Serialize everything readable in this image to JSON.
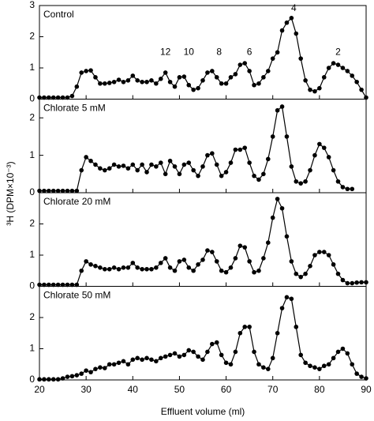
{
  "y_label": "³H (DPM×10⁻³)",
  "x_label": "Effluent volume (ml)",
  "chart_data": [
    {
      "type": "line",
      "title": "Control",
      "xlim": [
        20,
        90
      ],
      "ylim": [
        0,
        3
      ],
      "yticks": [
        0,
        1,
        2,
        3
      ],
      "x": [
        20,
        21,
        22,
        23,
        24,
        25,
        26,
        27,
        28,
        29,
        30,
        31,
        32,
        33,
        34,
        35,
        36,
        37,
        38,
        39,
        40,
        41,
        42,
        43,
        44,
        45,
        46,
        47,
        48,
        49,
        50,
        51,
        52,
        53,
        54,
        55,
        56,
        57,
        58,
        59,
        60,
        61,
        62,
        63,
        64,
        65,
        66,
        67,
        68,
        69,
        70,
        71,
        72,
        73,
        74,
        75,
        76,
        77,
        78,
        79,
        80,
        81,
        82,
        83,
        84,
        85,
        86,
        87,
        88,
        89,
        90
      ],
      "series": [
        {
          "name": "Control",
          "color": "#000000",
          "values": [
            0.05,
            0.05,
            0.05,
            0.05,
            0.05,
            0.05,
            0.05,
            0.1,
            0.4,
            0.85,
            0.9,
            0.92,
            0.7,
            0.5,
            0.5,
            0.52,
            0.55,
            0.62,
            0.55,
            0.6,
            0.75,
            0.6,
            0.55,
            0.55,
            0.6,
            0.5,
            0.65,
            0.85,
            0.55,
            0.4,
            0.7,
            0.72,
            0.45,
            0.3,
            0.35,
            0.6,
            0.85,
            0.9,
            0.7,
            0.5,
            0.5,
            0.7,
            0.8,
            1.1,
            1.15,
            0.9,
            0.45,
            0.5,
            0.7,
            0.9,
            1.3,
            1.5,
            2.2,
            2.45,
            2.6,
            2.1,
            1.3,
            0.6,
            0.3,
            0.25,
            0.35,
            0.7,
            1.0,
            1.15,
            1.1,
            1.0,
            0.9,
            0.75,
            0.55,
            0.3,
            0.05
          ]
        }
      ],
      "annotations": [
        {
          "text": "12",
          "x": 47,
          "y": 1.5
        },
        {
          "text": "10",
          "x": 52,
          "y": 1.5
        },
        {
          "text": "8",
          "x": 58.5,
          "y": 1.5
        },
        {
          "text": "6",
          "x": 65,
          "y": 1.5
        },
        {
          "text": "4",
          "x": 74.5,
          "y": 2.9
        },
        {
          "text": "2",
          "x": 84,
          "y": 1.5
        }
      ]
    },
    {
      "type": "line",
      "title": "Chlorate 5 mM",
      "xlim": [
        20,
        90
      ],
      "ylim": [
        0,
        2.5
      ],
      "yticks": [
        0,
        1,
        2
      ],
      "x": [
        20,
        21,
        22,
        23,
        24,
        25,
        26,
        27,
        28,
        29,
        30,
        31,
        32,
        33,
        34,
        35,
        36,
        37,
        38,
        39,
        40,
        41,
        42,
        43,
        44,
        45,
        46,
        47,
        48,
        49,
        50,
        51,
        52,
        53,
        54,
        55,
        56,
        57,
        58,
        59,
        60,
        61,
        62,
        63,
        64,
        65,
        66,
        67,
        68,
        69,
        70,
        71,
        72,
        73,
        74,
        75,
        76,
        77,
        78,
        79,
        80,
        81,
        82,
        83,
        84,
        85,
        86,
        87
      ],
      "series": [
        {
          "name": "Chlorate 5 mM",
          "color": "#000000",
          "values": [
            0.05,
            0.05,
            0.05,
            0.05,
            0.05,
            0.05,
            0.05,
            0.05,
            0.05,
            0.6,
            0.95,
            0.85,
            0.75,
            0.65,
            0.6,
            0.65,
            0.75,
            0.7,
            0.72,
            0.65,
            0.75,
            0.6,
            0.75,
            0.55,
            0.75,
            0.7,
            0.8,
            0.5,
            0.85,
            0.7,
            0.5,
            0.75,
            0.8,
            0.6,
            0.45,
            0.7,
            1.0,
            1.05,
            0.75,
            0.45,
            0.55,
            0.8,
            1.15,
            1.15,
            1.2,
            0.8,
            0.45,
            0.35,
            0.5,
            0.9,
            1.5,
            2.2,
            2.3,
            1.5,
            0.7,
            0.3,
            0.25,
            0.3,
            0.6,
            1.0,
            1.3,
            1.2,
            0.95,
            0.6,
            0.3,
            0.15,
            0.1,
            0.1
          ]
        }
      ]
    },
    {
      "type": "line",
      "title": "Chlorate 20 mM",
      "xlim": [
        20,
        90
      ],
      "ylim": [
        0,
        3
      ],
      "yticks": [
        0,
        1,
        2
      ],
      "x": [
        20,
        21,
        22,
        23,
        24,
        25,
        26,
        27,
        28,
        29,
        30,
        31,
        32,
        33,
        34,
        35,
        36,
        37,
        38,
        39,
        40,
        41,
        42,
        43,
        44,
        45,
        46,
        47,
        48,
        49,
        50,
        51,
        52,
        53,
        54,
        55,
        56,
        57,
        58,
        59,
        60,
        61,
        62,
        63,
        64,
        65,
        66,
        67,
        68,
        69,
        70,
        71,
        72,
        73,
        74,
        75,
        76,
        77,
        78,
        79,
        80,
        81,
        82,
        83,
        84,
        85,
        86,
        87,
        88,
        89,
        90
      ],
      "series": [
        {
          "name": "Chlorate 20 mM",
          "color": "#000000",
          "values": [
            0.05,
            0.05,
            0.05,
            0.05,
            0.05,
            0.05,
            0.05,
            0.05,
            0.05,
            0.5,
            0.8,
            0.7,
            0.65,
            0.6,
            0.55,
            0.55,
            0.6,
            0.55,
            0.6,
            0.6,
            0.75,
            0.6,
            0.55,
            0.55,
            0.55,
            0.6,
            0.75,
            0.9,
            0.6,
            0.5,
            0.8,
            0.85,
            0.6,
            0.5,
            0.7,
            0.85,
            1.15,
            1.1,
            0.8,
            0.5,
            0.45,
            0.6,
            0.9,
            1.3,
            1.25,
            0.8,
            0.45,
            0.5,
            0.9,
            1.4,
            2.2,
            2.8,
            2.5,
            1.6,
            0.8,
            0.4,
            0.3,
            0.4,
            0.65,
            1.0,
            1.1,
            1.1,
            1.0,
            0.7,
            0.4,
            0.2,
            0.1,
            0.1,
            0.12,
            0.13,
            0.13
          ]
        }
      ]
    },
    {
      "type": "line",
      "title": "Chlorate 50 mM",
      "xlim": [
        20,
        90
      ],
      "ylim": [
        0,
        3
      ],
      "yticks": [
        0,
        1,
        2
      ],
      "xticks": [
        20,
        30,
        40,
        50,
        60,
        70,
        80,
        90
      ],
      "x": [
        20,
        21,
        22,
        23,
        24,
        25,
        26,
        27,
        28,
        29,
        30,
        31,
        32,
        33,
        34,
        35,
        36,
        37,
        38,
        39,
        40,
        41,
        42,
        43,
        44,
        45,
        46,
        47,
        48,
        49,
        50,
        51,
        52,
        53,
        54,
        55,
        56,
        57,
        58,
        59,
        60,
        61,
        62,
        63,
        64,
        65,
        66,
        67,
        68,
        69,
        70,
        71,
        72,
        73,
        74,
        75,
        76,
        77,
        78,
        79,
        80,
        81,
        82,
        83,
        84,
        85,
        86,
        87,
        88,
        89,
        90
      ],
      "series": [
        {
          "name": "Chlorate 50 mM",
          "color": "#000000",
          "values": [
            0.02,
            0.02,
            0.02,
            0.02,
            0.02,
            0.05,
            0.1,
            0.12,
            0.15,
            0.2,
            0.3,
            0.25,
            0.35,
            0.4,
            0.38,
            0.5,
            0.5,
            0.55,
            0.6,
            0.5,
            0.65,
            0.7,
            0.65,
            0.7,
            0.65,
            0.6,
            0.7,
            0.75,
            0.8,
            0.85,
            0.75,
            0.8,
            0.95,
            0.9,
            0.75,
            0.65,
            0.9,
            1.15,
            1.2,
            0.8,
            0.55,
            0.5,
            0.9,
            1.5,
            1.7,
            1.7,
            0.9,
            0.5,
            0.4,
            0.35,
            0.7,
            1.5,
            2.3,
            2.65,
            2.6,
            1.7,
            0.8,
            0.55,
            0.45,
            0.4,
            0.35,
            0.45,
            0.5,
            0.7,
            0.9,
            1.0,
            0.85,
            0.5,
            0.2,
            0.1,
            0.05
          ]
        }
      ]
    }
  ]
}
